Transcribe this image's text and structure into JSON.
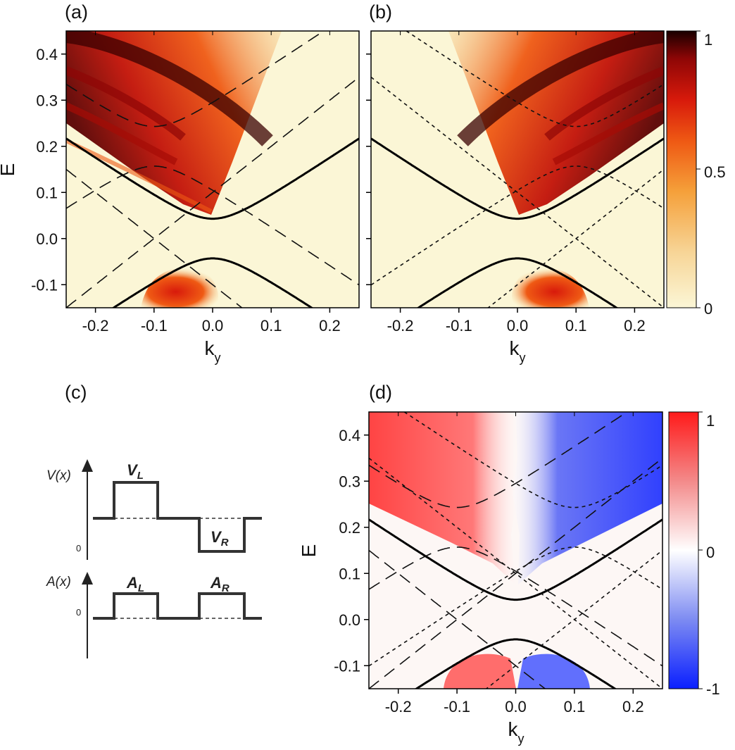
{
  "panels": {
    "a": {
      "label": "(a)",
      "xlabel": "k",
      "xlabel_sub": "y",
      "ylabel": "E"
    },
    "b": {
      "label": "(b)",
      "xlabel": "k",
      "xlabel_sub": "y"
    },
    "c": {
      "label": "(c)"
    },
    "d": {
      "label": "(d)",
      "xlabel": "k",
      "xlabel_sub": "y",
      "ylabel": "E"
    }
  },
  "colorbars": {
    "top": {
      "ticks": [
        "1",
        "0.5",
        "0"
      ],
      "colormap": [
        "#fbf6d6",
        "#f7d597",
        "#f5a03a",
        "#ef5a14",
        "#d81a0b",
        "#8e0606",
        "#1a0000"
      ]
    },
    "bottom": {
      "ticks": [
        "1",
        "0",
        "-1"
      ],
      "colormap": [
        "#0a1fff",
        "#7d8bf2",
        "#ffffff",
        "#f38a8a",
        "#ff1a1a"
      ]
    }
  },
  "schematic": {
    "V_label": "V(x)",
    "A_label": "A(x)",
    "VL_main": "V",
    "VL_sub": "L",
    "VR_main": "V",
    "VR_sub": "R",
    "AL_main": "A",
    "AL_sub": "L",
    "AR_main": "A",
    "AR_sub": "R",
    "zero_V": "0",
    "zero_A": "0"
  },
  "chart_data": [
    {
      "type": "heatmap",
      "panel": "a",
      "xlabel": "ky",
      "ylabel": "E",
      "xlim": [
        -0.25,
        0.25
      ],
      "ylim": [
        -0.15,
        0.45
      ],
      "xticks": [
        "-0.2",
        "-0.1",
        "0.0",
        "0.1",
        "0.2"
      ],
      "yticks": [
        "0.4",
        "0.3",
        "0.2",
        "0.1",
        "0.0",
        "-0.1"
      ],
      "xtick_values": [
        -0.2,
        -0.1,
        0.0,
        0.1,
        0.2
      ],
      "ytick_values": [
        0.4,
        0.3,
        0.2,
        0.1,
        0.0,
        -0.1
      ],
      "colorscale": [
        0,
        1
      ],
      "solid_band_gap": 0.043,
      "dashed_cone_offset": -0.1,
      "dashed_gap_band_center": -0.1
    },
    {
      "type": "heatmap",
      "panel": "b",
      "xlabel": "ky",
      "xlim": [
        -0.25,
        0.25
      ],
      "ylim": [
        -0.15,
        0.45
      ],
      "xticks": [
        "-0.2",
        "-0.1",
        "0.0",
        "0.1",
        "0.2"
      ],
      "xtick_values": [
        -0.2,
        -0.1,
        0.0,
        0.1,
        0.2
      ],
      "colorscale": [
        0,
        1
      ],
      "solid_band_gap": 0.043,
      "dotted_band_center": 0.1
    },
    {
      "type": "heatmap",
      "panel": "d",
      "xlabel": "ky",
      "ylabel": "E",
      "xlim": [
        -0.25,
        0.25
      ],
      "ylim": [
        -0.15,
        0.45
      ],
      "xticks": [
        "-0.2",
        "-0.1",
        "0.0",
        "0.1",
        "0.2"
      ],
      "yticks": [
        "0.4",
        "0.3",
        "0.2",
        "0.1",
        "0.0",
        "-0.1"
      ],
      "xtick_values": [
        -0.2,
        -0.1,
        0.0,
        0.1,
        0.2
      ],
      "ytick_values": [
        0.4,
        0.3,
        0.2,
        0.1,
        0.0,
        -0.1
      ],
      "colorscale": [
        -1,
        1
      ],
      "solid_band_gap": 0.043
    }
  ]
}
